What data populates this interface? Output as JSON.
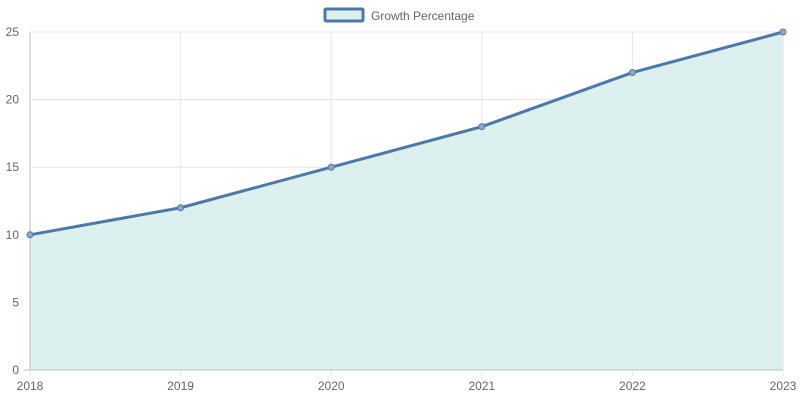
{
  "chart_data": {
    "type": "area",
    "title": "",
    "xlabel": "",
    "ylabel": "",
    "categories": [
      "2018",
      "2019",
      "2020",
      "2021",
      "2022",
      "2023"
    ],
    "series": [
      {
        "name": "Growth Percentage",
        "values": [
          10,
          12,
          15,
          18,
          22,
          25
        ]
      }
    ],
    "ylim": [
      0,
      25
    ],
    "yticks": [
      0,
      5,
      10,
      15,
      20,
      25
    ],
    "grid": true,
    "legend_position": "top-center",
    "colors": {
      "line": "#4e79a7",
      "fill": "#dcf1ef",
      "grid": "#e5e5e5",
      "axis": "#bdbdbd",
      "text": "#666666"
    }
  }
}
